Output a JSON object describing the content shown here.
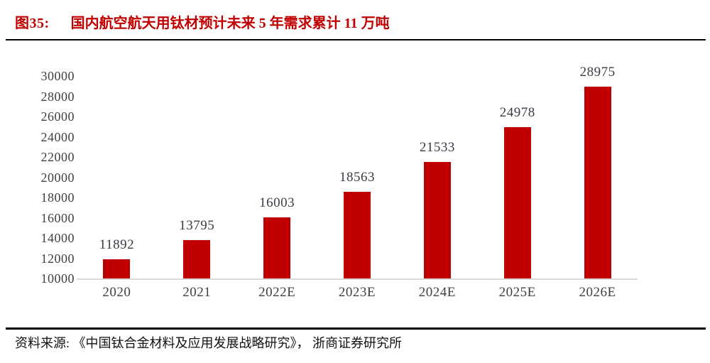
{
  "page": {
    "figure_label": "图35:",
    "figure_title": "国内航空航天用钛材预计未来 5 年需求累计 11 万吨",
    "source": "资料来源: 《中国钛合金材料及应用发展战略研究》， 浙商证券研究所"
  },
  "colors": {
    "accent_red": "#C00000",
    "tick_text": "#404040",
    "value_label_text": "#3B3B44",
    "baseline_gray": "#D9D9D9",
    "rule_black": "#000000"
  },
  "chart_data": {
    "type": "bar",
    "title": "国内航空航天用钛材预计未来 5 年需求累计 11 万吨",
    "categories": [
      "2020",
      "2021",
      "2022E",
      "2023E",
      "2024E",
      "2025E",
      "2026E"
    ],
    "values": [
      11892,
      13795,
      16003,
      18563,
      21533,
      24978,
      28975
    ],
    "xlabel": "",
    "ylabel": "",
    "ylim": [
      10000,
      30000
    ],
    "yticks": [
      10000,
      12000,
      14000,
      16000,
      18000,
      20000,
      22000,
      24000,
      26000,
      28000,
      30000
    ],
    "bar_color": "#C00000",
    "grid": false,
    "legend": false,
    "data_labels": true
  }
}
